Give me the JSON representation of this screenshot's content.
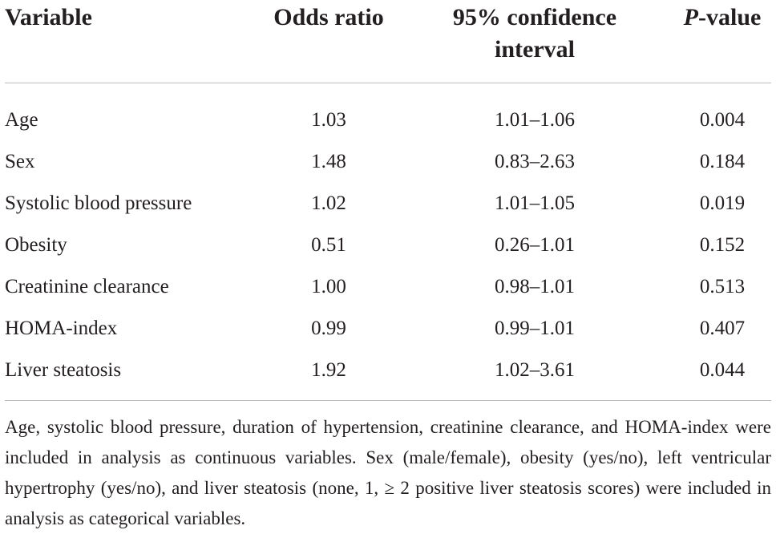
{
  "table": {
    "headers": {
      "variable": "Variable",
      "odds_ratio": "Odds ratio",
      "ci_line1": "95% confidence",
      "ci_line2": "interval",
      "p_italic": "P",
      "p_rest": "-value"
    },
    "rows": [
      {
        "variable": "Age",
        "odds_ratio": "1.03",
        "ci": "1.01–1.06",
        "p": "0.004"
      },
      {
        "variable": "Sex",
        "odds_ratio": "1.48",
        "ci": "0.83–2.63",
        "p": "0.184"
      },
      {
        "variable": "Systolic blood pressure",
        "odds_ratio": "1.02",
        "ci": "1.01–1.05",
        "p": "0.019"
      },
      {
        "variable": "Obesity",
        "odds_ratio": "0.51",
        "ci": "0.26–1.01",
        "p": "0.152"
      },
      {
        "variable": "Creatinine clearance",
        "odds_ratio": "1.00",
        "ci": "0.98–1.01",
        "p": "0.513"
      },
      {
        "variable": "HOMA-index",
        "odds_ratio": "0.99",
        "ci": "0.99–1.01",
        "p": "0.407"
      },
      {
        "variable": "Liver steatosis",
        "odds_ratio": "1.92",
        "ci": "1.02–3.61",
        "p": "0.044"
      }
    ],
    "footnote": "Age, systolic blood pressure, duration of hypertension, creatinine clearance, and HOMA-index were included in analysis as continuous variables. Sex (male/female), obesity (yes/no), left ventricular hypertrophy (yes/no), and liver steatosis (none, 1, ≥ 2 positive liver steatosis scores) were included in analysis as categorical variables."
  }
}
